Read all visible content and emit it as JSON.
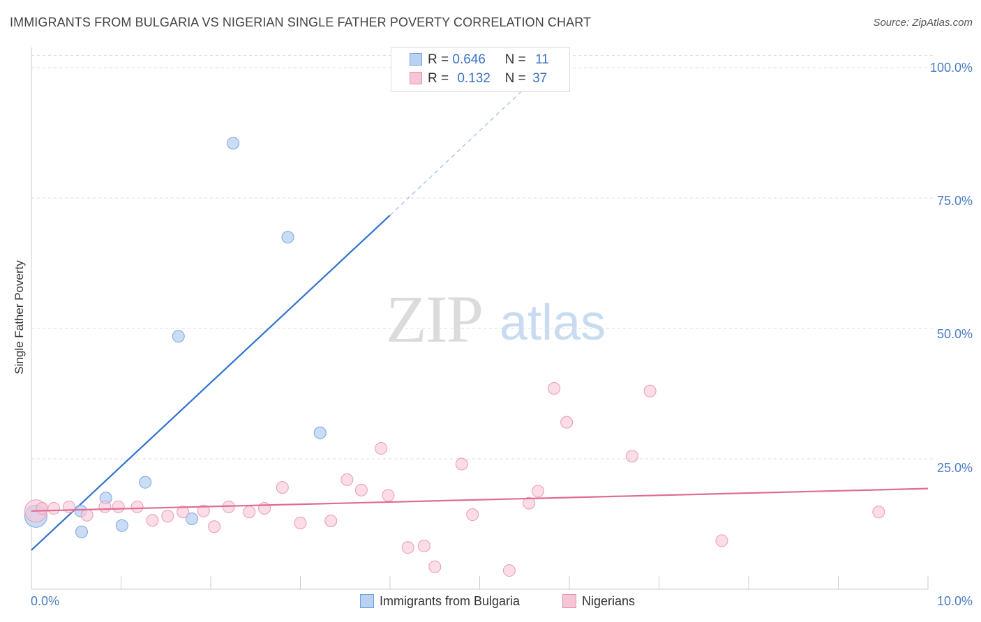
{
  "title": "IMMIGRANTS FROM BULGARIA VS NIGERIAN SINGLE FATHER POVERTY CORRELATION CHART",
  "source": "Source: ZipAtlas.com",
  "watermark": {
    "zip": "ZIP",
    "atlas": "atlas"
  },
  "legend": {
    "r_label": "R =",
    "n_label": "N =",
    "items": [
      {
        "name": "Immigrants from Bulgaria",
        "r": "0.646",
        "n": "11",
        "color": "#6d9ee0",
        "fill": "#b9d2f2"
      },
      {
        "name": "Nigerians",
        "r": "0.132",
        "n": "37",
        "color": "#ec8fae",
        "fill": "#f7c6d6"
      }
    ]
  },
  "chart_data": {
    "type": "scatter",
    "title": "IMMIGRANTS FROM BULGARIA VS NIGERIAN SINGLE FATHER POVERTY CORRELATION CHART",
    "xlabel": "",
    "ylabel": "Single Father Poverty",
    "xlim": [
      0,
      10
    ],
    "ylim": [
      0,
      100
    ],
    "x_tick_labels": [
      "0.0%",
      "10.0%"
    ],
    "y_ticks": [
      25,
      50,
      75,
      100
    ],
    "y_tick_labels": [
      "25.0%",
      "50.0%",
      "75.0%",
      "100.0%"
    ],
    "grid": "horizontal dashed",
    "legend_position": "top-center",
    "series": [
      {
        "name": "Immigrants from Bulgaria",
        "color": "#6d9ee0",
        "points": [
          {
            "x": 0.05,
            "y": 14.0,
            "size": "large"
          },
          {
            "x": 0.55,
            "y": 15.0
          },
          {
            "x": 0.56,
            "y": 11.0
          },
          {
            "x": 0.83,
            "y": 17.5
          },
          {
            "x": 1.01,
            "y": 12.2
          },
          {
            "x": 1.27,
            "y": 20.5
          },
          {
            "x": 1.64,
            "y": 48.5
          },
          {
            "x": 1.79,
            "y": 13.5
          },
          {
            "x": 2.25,
            "y": 85.5
          },
          {
            "x": 2.86,
            "y": 67.5
          },
          {
            "x": 3.22,
            "y": 30.0
          }
        ],
        "trend": {
          "x0": 0.0,
          "y0": 7.5,
          "x1": 4.0,
          "y1": 71.7,
          "dashed_x1": 5.5,
          "dashed_y1": 96.0
        }
      },
      {
        "name": "Nigerians",
        "color": "#ec8fae",
        "points": [
          {
            "x": 0.05,
            "y": 15.0,
            "size": "large"
          },
          {
            "x": 0.12,
            "y": 15.5
          },
          {
            "x": 0.25,
            "y": 15.5
          },
          {
            "x": 0.42,
            "y": 15.8
          },
          {
            "x": 0.62,
            "y": 14.2
          },
          {
            "x": 0.82,
            "y": 15.8
          },
          {
            "x": 0.97,
            "y": 15.8
          },
          {
            "x": 1.18,
            "y": 15.8
          },
          {
            "x": 1.35,
            "y": 13.2
          },
          {
            "x": 1.52,
            "y": 14.0
          },
          {
            "x": 1.69,
            "y": 14.8
          },
          {
            "x": 1.92,
            "y": 15.0
          },
          {
            "x": 2.04,
            "y": 12.0
          },
          {
            "x": 2.2,
            "y": 15.8
          },
          {
            "x": 2.43,
            "y": 14.8
          },
          {
            "x": 2.6,
            "y": 15.5
          },
          {
            "x": 2.8,
            "y": 19.5
          },
          {
            "x": 3.0,
            "y": 12.7
          },
          {
            "x": 3.34,
            "y": 13.1
          },
          {
            "x": 3.52,
            "y": 21.0
          },
          {
            "x": 3.68,
            "y": 19.0
          },
          {
            "x": 3.9,
            "y": 27.0
          },
          {
            "x": 3.98,
            "y": 18.0
          },
          {
            "x": 4.2,
            "y": 8.0
          },
          {
            "x": 4.38,
            "y": 8.3
          },
          {
            "x": 4.5,
            "y": 4.3
          },
          {
            "x": 4.8,
            "y": 24.0
          },
          {
            "x": 4.92,
            "y": 14.3
          },
          {
            "x": 5.33,
            "y": 3.6
          },
          {
            "x": 5.55,
            "y": 16.5
          },
          {
            "x": 5.65,
            "y": 18.8
          },
          {
            "x": 5.83,
            "y": 38.5
          },
          {
            "x": 5.97,
            "y": 32.0
          },
          {
            "x": 6.7,
            "y": 25.5
          },
          {
            "x": 6.9,
            "y": 38.0
          },
          {
            "x": 7.7,
            "y": 9.3
          },
          {
            "x": 9.45,
            "y": 14.8
          }
        ],
        "trend": {
          "x0": 0.0,
          "y0": 15.0,
          "x1": 10.0,
          "y1": 19.3
        }
      }
    ]
  }
}
